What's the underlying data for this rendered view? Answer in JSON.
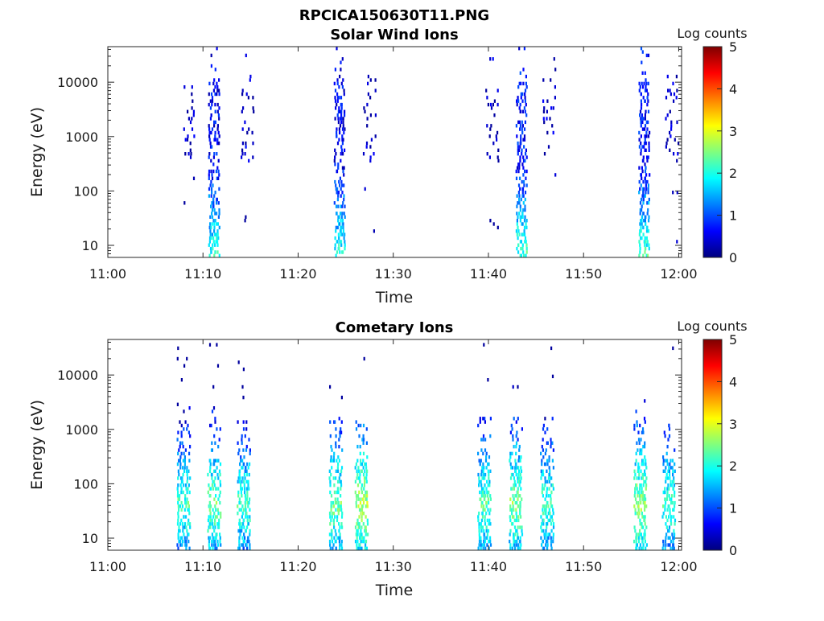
{
  "figure": {
    "title": "RPCICA150630T11.PNG"
  },
  "chart_data": [
    {
      "type": "heatmap",
      "title": "Solar Wind Ions",
      "xlabel": "Time",
      "ylabel": "Energy (eV)",
      "xlim": [
        "11:00",
        "12:00"
      ],
      "x_ticks": [
        "11:00",
        "11:10",
        "11:20",
        "11:30",
        "11:40",
        "11:50",
        "12:00"
      ],
      "y_scale": "log",
      "ylim": [
        6,
        45000
      ],
      "y_ticks": [
        10,
        100,
        1000,
        10000
      ],
      "y_tick_labels": [
        "10",
        "100",
        "1000",
        "10000"
      ],
      "colorbar": {
        "label": "Log counts",
        "range": [
          0,
          5
        ],
        "ticks": [
          "0",
          "1",
          "2",
          "3",
          "4",
          "5"
        ],
        "colormap": "jet"
      },
      "bursts": [
        {
          "t_min": 11.2,
          "level": 0.6,
          "kind": "solar_core"
        },
        {
          "t_min": 8.7,
          "level": 0.3,
          "kind": "solar_scatter"
        },
        {
          "t_min": 14.8,
          "level": 0.3,
          "kind": "solar_scatter"
        },
        {
          "t_min": 24.4,
          "level": 0.6,
          "kind": "solar_core"
        },
        {
          "t_min": 27.6,
          "level": 0.3,
          "kind": "solar_scatter"
        },
        {
          "t_min": 43.5,
          "level": 0.7,
          "kind": "solar_core"
        },
        {
          "t_min": 40.5,
          "level": 0.3,
          "kind": "solar_scatter"
        },
        {
          "t_min": 46.5,
          "level": 0.3,
          "kind": "solar_scatter"
        },
        {
          "t_min": 56.4,
          "level": 0.7,
          "kind": "solar_core"
        },
        {
          "t_min": 59.4,
          "level": 0.3,
          "kind": "solar_scatter"
        }
      ]
    },
    {
      "type": "heatmap",
      "title": "Cometary Ions",
      "xlabel": "Time",
      "ylabel": "Energy (eV)",
      "xlim": [
        "11:00",
        "12:00"
      ],
      "x_ticks": [
        "11:00",
        "11:10",
        "11:20",
        "11:30",
        "11:40",
        "11:50",
        "12:00"
      ],
      "y_scale": "log",
      "ylim": [
        6,
        45000
      ],
      "y_ticks": [
        10,
        100,
        1000,
        10000
      ],
      "y_tick_labels": [
        "10",
        "100",
        "1000",
        "10000"
      ],
      "colorbar": {
        "label": "Log counts",
        "range": [
          0,
          5
        ],
        "ticks": [
          "0",
          "1",
          "2",
          "3",
          "4",
          "5"
        ],
        "colormap": "jet"
      },
      "bursts": [
        {
          "t_min": 8.0,
          "level": 2.2,
          "kind": "comet"
        },
        {
          "t_min": 11.2,
          "level": 2.4,
          "kind": "comet"
        },
        {
          "t_min": 14.3,
          "level": 2.2,
          "kind": "comet"
        },
        {
          "t_min": 24.0,
          "level": 2.4,
          "kind": "comet"
        },
        {
          "t_min": 26.7,
          "level": 2.7,
          "kind": "comet"
        },
        {
          "t_min": 39.6,
          "level": 2.3,
          "kind": "comet"
        },
        {
          "t_min": 42.9,
          "level": 2.5,
          "kind": "comet"
        },
        {
          "t_min": 46.2,
          "level": 2.2,
          "kind": "comet"
        },
        {
          "t_min": 56.0,
          "level": 2.6,
          "kind": "comet"
        },
        {
          "t_min": 59.0,
          "level": 2.2,
          "kind": "comet"
        }
      ]
    }
  ]
}
